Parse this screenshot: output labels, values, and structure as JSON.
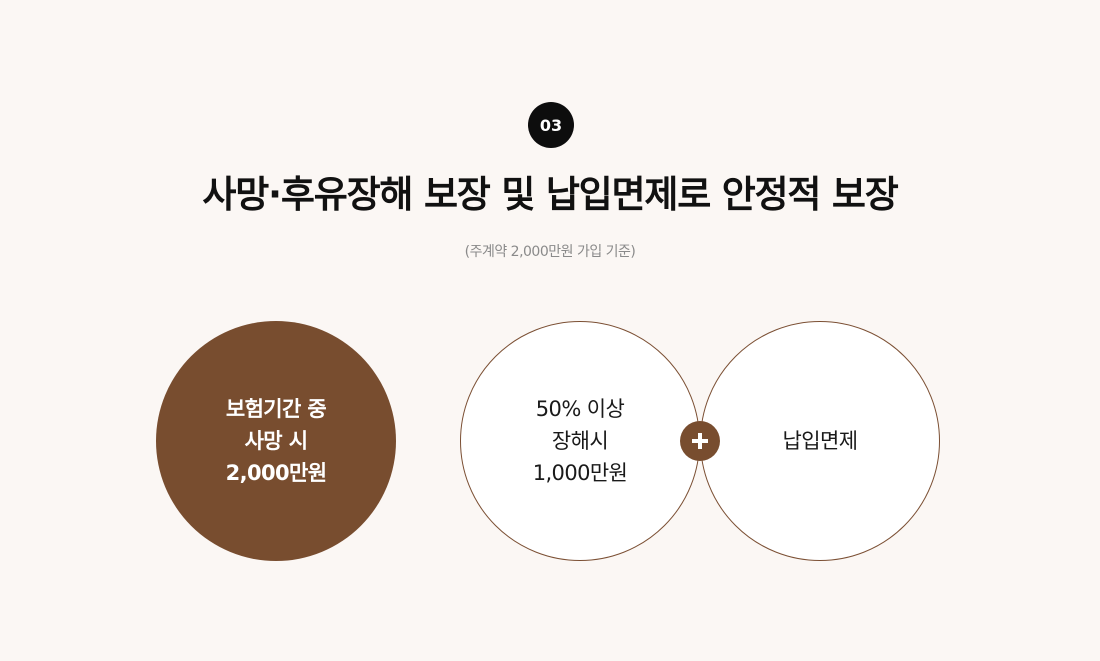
{
  "step": {
    "number": "03"
  },
  "header": {
    "title": "사망·후유장해 보장 및 납입면제로 안정적 보장",
    "subtitle": "(주계약 2,000만원 가입 기준)"
  },
  "cards": {
    "death": {
      "lines": [
        "보험기간 중",
        "사망 시",
        "2,000만원"
      ]
    },
    "disability": {
      "lines": [
        "50% 이상",
        "장해시",
        "1,000만원"
      ]
    },
    "waiver": {
      "lines": [
        "납입면제"
      ]
    }
  },
  "combiner": {
    "icon": "plus-icon"
  },
  "colors": {
    "brand_brown": "#784d2f",
    "background": "#fbf7f4",
    "badge_black": "#0d0d0d"
  }
}
